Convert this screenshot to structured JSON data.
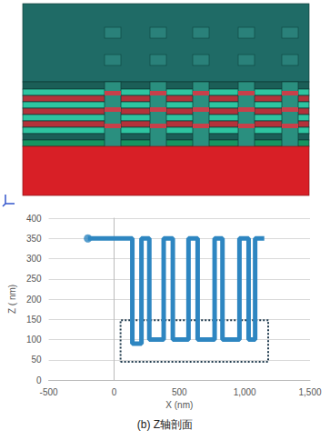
{
  "chart_data": {
    "type": "line",
    "title": "(b) Z轴剖面",
    "x_label": "X (nm)",
    "y_label": "Z ( nm)",
    "x": [
      -200,
      140,
      140,
      210,
      210,
      270,
      270,
      380,
      380,
      450,
      450,
      570,
      570,
      640,
      640,
      770,
      770,
      830,
      830,
      960,
      960,
      1030,
      1030,
      1080,
      1080,
      1150
    ],
    "values": [
      350,
      350,
      90,
      90,
      350,
      350,
      100,
      100,
      350,
      350,
      100,
      100,
      350,
      350,
      100,
      100,
      350,
      350,
      100,
      100,
      350,
      350,
      100,
      100,
      350,
      350
    ],
    "color": "#2e86c1",
    "annotations": [
      {
        "type": "rectangle",
        "x": [
          50,
          1180
        ],
        "y": [
          45,
          148
        ],
        "line_style": "dotted",
        "color": "#1f3a4d"
      }
    ],
    "xlim": [
      -500,
      1500
    ],
    "xticks": [
      -500,
      0,
      500,
      1000,
      1500
    ],
    "ylim": [
      0,
      400
    ],
    "yticks": [
      0,
      50,
      100,
      150,
      200,
      250,
      300,
      350,
      400
    ],
    "grid": true
  }
}
